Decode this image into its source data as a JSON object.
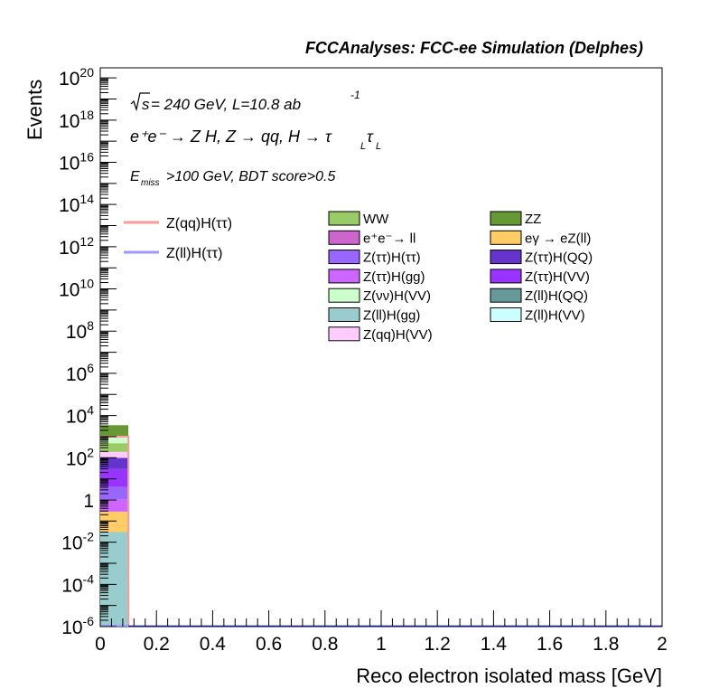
{
  "chart_data": {
    "type": "bar",
    "stacked": true,
    "title": "FCCAnalyses: FCC-ee Simulation (Delphes)",
    "xlabel": "Reco electron isolated mass [GeV]",
    "ylabel": "Events",
    "xlim": [
      0,
      2
    ],
    "ylim": [
      1e-06,
      3e+20
    ],
    "log_y": true,
    "x_ticks": [
      "0",
      "0.2",
      "0.4",
      "0.6",
      "0.8",
      "1",
      "1.2",
      "1.4",
      "1.6",
      "1.8",
      "2"
    ],
    "annotations": {
      "line1_root": "s",
      "line1_rest": " = 240 GeV, L=10.8 ab",
      "line1_sup": "-1",
      "line2": "e⁺e⁻ → Z H, Z → qq, H → τ",
      "line2_sub1": "L",
      "line2_tau": "τ",
      "line2_sub2": "L",
      "line3_E": "E",
      "line3_sub": "miss",
      "line3_rest": ">100 GeV, BDT score>0.5"
    },
    "bin": [
      0,
      0.1
    ],
    "stack": [
      {
        "name": "Z(ll)H(gg)",
        "color": "#99cccc",
        "value": 0.03
      },
      {
        "name": "eγ → eZ(ll)",
        "color": "#ffcc66",
        "value": 0.25
      },
      {
        "name": "Z(ττ)H(gg)",
        "color": "#cc66ff",
        "value": 0.8
      },
      {
        "name": "Z(ττ)H(ττ)",
        "color": "#9966ff",
        "value": 3
      },
      {
        "name": "Z(ττ)H(VV)",
        "color": "#9933ff",
        "value": 25
      },
      {
        "name": "Z(ττ)H(QQ)",
        "color": "#6633cc",
        "value": 70
      },
      {
        "name": "Z(qq)H(VV)",
        "color": "#ffccff",
        "value": 90
      },
      {
        "name": "WW",
        "color": "#99cc66",
        "value": 300
      },
      {
        "name": "Z(νν)H(VV)",
        "color": "#ccffcc",
        "value": 500
      },
      {
        "name": "ZZ",
        "color": "#669933",
        "value": 2500
      }
    ],
    "signals": [
      {
        "name": "Z(qq)H(ττ)",
        "color": "#ff9999",
        "value": 1000
      },
      {
        "name": "Z(ll)H(ττ)",
        "color": "#9999ff",
        "value": 1e-06
      }
    ],
    "legend_signal": [
      "Z(qq)H(ττ)",
      "Z(ll)H(ττ)"
    ],
    "legend_col1": [
      {
        "name": "WW",
        "color": "#99cc66"
      },
      {
        "name": "e⁺e⁻→ ll",
        "color": "#cc66cc"
      },
      {
        "name": "Z(ττ)H(ττ)",
        "color": "#9966ff"
      },
      {
        "name": "Z(ττ)H(gg)",
        "color": "#cc66ff"
      },
      {
        "name": "Z(νν)H(VV)",
        "color": "#ccffcc"
      },
      {
        "name": "Z(ll)H(gg)",
        "color": "#99cccc"
      },
      {
        "name": "Z(qq)H(VV)",
        "color": "#ffccff"
      }
    ],
    "legend_col2": [
      {
        "name": "ZZ",
        "color": "#669933"
      },
      {
        "name": "eγ → eZ(ll)",
        "color": "#ffcc66"
      },
      {
        "name": "Z(ττ)H(QQ)",
        "color": "#6633cc"
      },
      {
        "name": "Z(ττ)H(VV)",
        "color": "#9933ff"
      },
      {
        "name": "Z(ll)H(QQ)",
        "color": "#669999"
      },
      {
        "name": "Z(ll)H(VV)",
        "color": "#ccffff"
      }
    ]
  }
}
